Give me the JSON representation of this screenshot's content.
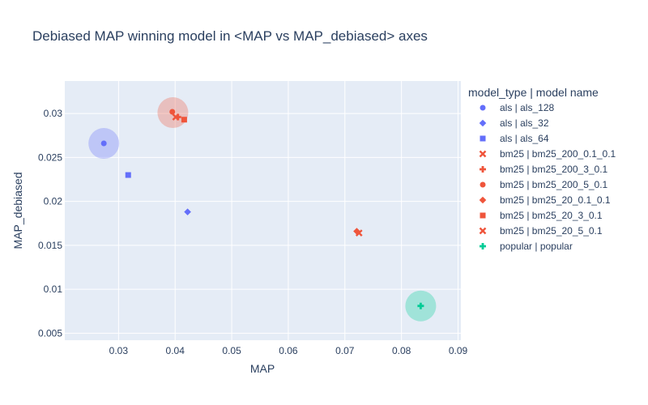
{
  "chart_data": {
    "type": "scatter",
    "title": "Debiased MAP winning model in <MAP vs MAP_debiased> axes",
    "xlabel": "MAP",
    "ylabel": "MAP_debiased",
    "xlim": [
      0.0205,
      0.0905
    ],
    "ylim": [
      0.0042,
      0.0337
    ],
    "xticks": [
      0.03,
      0.04,
      0.05,
      0.06,
      0.07,
      0.08,
      0.09
    ],
    "xtick_labels": [
      "0.03",
      "0.04",
      "0.05",
      "0.06",
      "0.07",
      "0.08",
      "0.09"
    ],
    "yticks": [
      0.005,
      0.01,
      0.015,
      0.02,
      0.025,
      0.03
    ],
    "ytick_labels": [
      "0.005",
      "0.01",
      "0.015",
      "0.02",
      "0.025",
      "0.03"
    ],
    "grid": true,
    "background_color": "#e5ecf6",
    "legend": {
      "title": "model_type | model name",
      "placement": "right"
    },
    "series": [
      {
        "name": "als | als_128",
        "symbol": "circle",
        "color": "#636efa",
        "x": [
          0.0274
        ],
        "y": [
          0.0266
        ]
      },
      {
        "name": "als | als_32",
        "symbol": "diamond",
        "color": "#636efa",
        "x": [
          0.0422
        ],
        "y": [
          0.0188
        ]
      },
      {
        "name": "als | als_64",
        "symbol": "square",
        "color": "#636efa",
        "x": [
          0.0317
        ],
        "y": [
          0.023
        ]
      },
      {
        "name": "bm25 | bm25_200_0.1_0.1",
        "symbol": "x",
        "color": "#ef553b",
        "x": [
          0.0725
        ],
        "y": [
          0.0164
        ]
      },
      {
        "name": "bm25 | bm25_200_3_0.1",
        "symbol": "cross",
        "color": "#ef553b",
        "x": [
          0.0405
        ],
        "y": [
          0.0296
        ]
      },
      {
        "name": "bm25 | bm25_200_5_0.1",
        "symbol": "circle",
        "color": "#ef553b",
        "x": [
          0.0395
        ],
        "y": [
          0.0302
        ]
      },
      {
        "name": "bm25 | bm25_20_0.1_0.1",
        "symbol": "diamond",
        "color": "#ef553b",
        "x": [
          0.0721
        ],
        "y": [
          0.0166
        ]
      },
      {
        "name": "bm25 | bm25_20_3_0.1",
        "symbol": "square",
        "color": "#ef553b",
        "x": [
          0.0416
        ],
        "y": [
          0.0293
        ]
      },
      {
        "name": "bm25 | bm25_20_5_0.1",
        "symbol": "x",
        "color": "#ef553b",
        "x": [
          0.0401
        ],
        "y": [
          0.0296
        ]
      },
      {
        "name": "popular | popular",
        "symbol": "cross",
        "color": "#00cc96",
        "x": [
          0.0834
        ],
        "y": [
          0.0081
        ]
      }
    ],
    "highlights": [
      {
        "x": 0.0274,
        "y": 0.0266,
        "color": "#636efa"
      },
      {
        "x": 0.0396,
        "y": 0.0301,
        "color": "#ef553b"
      },
      {
        "x": 0.0834,
        "y": 0.0081,
        "color": "#00cc96"
      }
    ]
  }
}
